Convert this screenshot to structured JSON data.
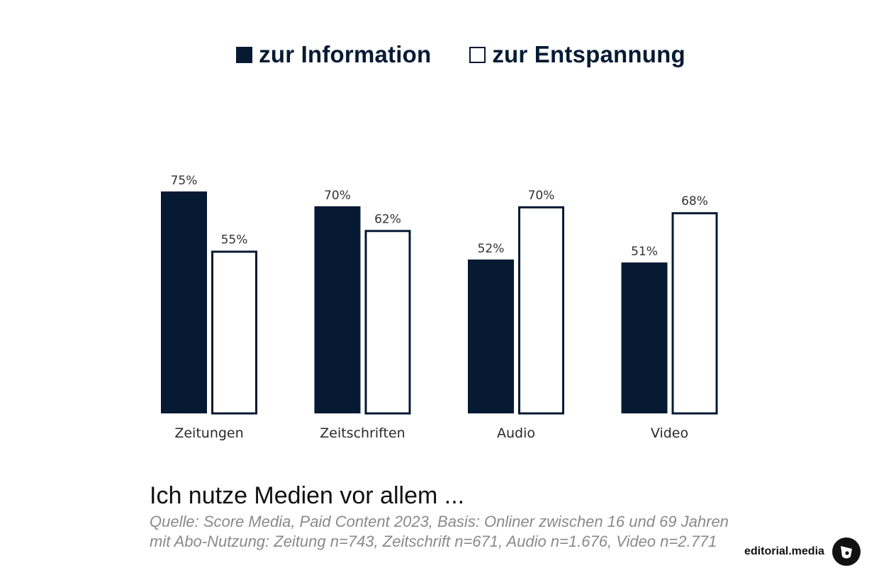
{
  "chart_data": {
    "type": "bar",
    "categories": [
      "Zeitungen",
      "Zeitschriften",
      "Audio",
      "Video"
    ],
    "series": [
      {
        "name": "zur Information",
        "values": [
          75,
          70,
          52,
          51
        ],
        "labels": [
          "75%",
          "70%",
          "52%",
          "51%"
        ],
        "color": "#061a33",
        "style": "filled"
      },
      {
        "name": "zur Entspannung",
        "values": [
          55,
          62,
          70,
          68
        ],
        "labels": [
          "55%",
          "62%",
          "70%",
          "68%"
        ],
        "color": "#061a33",
        "style": "outline"
      }
    ],
    "ylim": [
      0,
      100
    ],
    "grid": false,
    "legend": "top-center",
    "title": "Ich nutze Medien vor allem ...",
    "xlabel": "",
    "ylabel": ""
  },
  "source": {
    "line1": "Quelle: Score Media, Paid Content 2023, Basis: Onliner zwischen 16 und 69 Jahren",
    "line2": "mit Abo-Nutzung: Zeitung n=743, Zeitschrift n=671, Audio n=1.676, Video n=2.771"
  },
  "brand": {
    "text": "editorial.media"
  }
}
